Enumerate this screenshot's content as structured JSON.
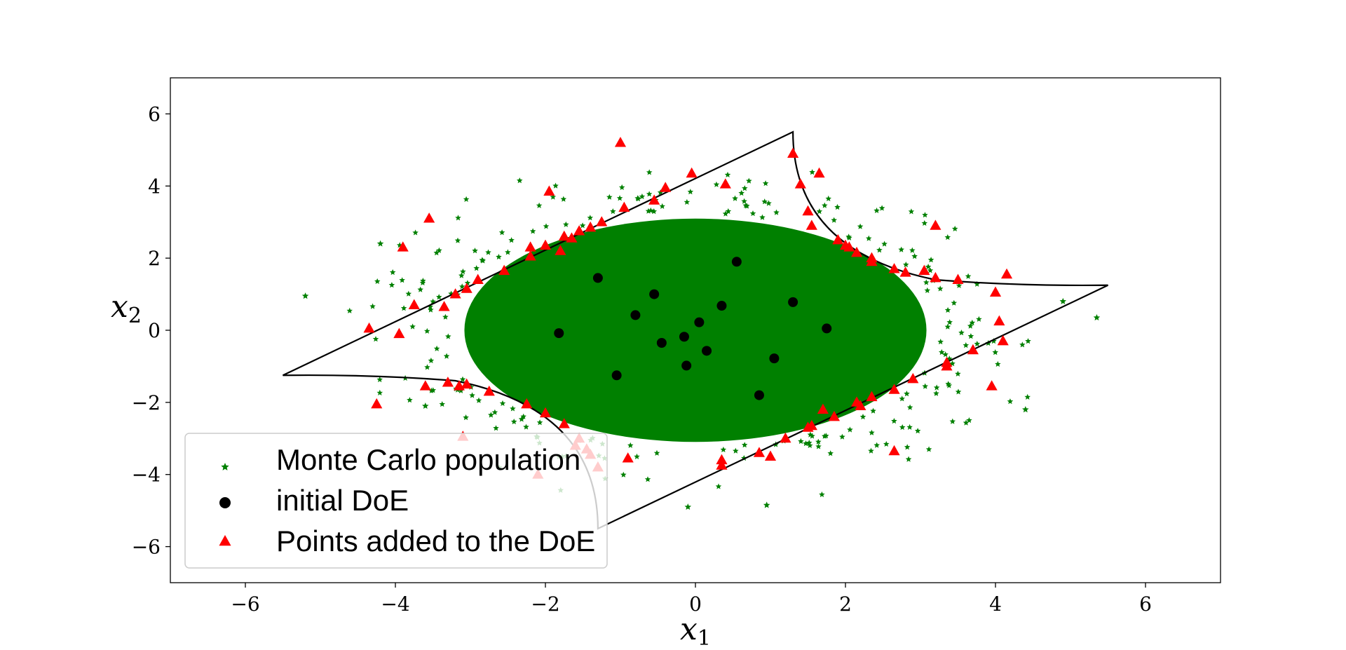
{
  "chart_data": {
    "type": "scatter",
    "title": "",
    "xlabel": "x",
    "xlabel_sub": "1",
    "ylabel": "x",
    "ylabel_sub": "2",
    "xlim": [
      -7,
      7
    ],
    "ylim": [
      -7,
      7
    ],
    "xticks": [
      -6,
      -4,
      -2,
      0,
      2,
      4,
      6
    ],
    "yticks": [
      -6,
      -4,
      -2,
      0,
      2,
      4,
      6
    ],
    "x_tick_labels": [
      "−6",
      "−4",
      "−2",
      "0",
      "2",
      "4",
      "6"
    ],
    "y_tick_labels": [
      "−6",
      "−4",
      "−2",
      "0",
      "2",
      "4",
      "6"
    ],
    "grid": false,
    "legend_position": "lower-left",
    "population": {
      "std_x": 1.0,
      "std_y": 1.0,
      "count_hint": "dense ellipse"
    },
    "series": [
      {
        "name": "Monte Carlo population",
        "marker": "star",
        "color": "#008000",
        "ellipse_center": [
          0,
          0
        ],
        "ellipse_radii": [
          3.5,
          3.6
        ],
        "outliers": [
          [
            -5.2,
            0.95
          ],
          [
            5.35,
            0.35
          ],
          [
            4.4,
            -2.2
          ],
          [
            -0.1,
            -4.9
          ],
          [
            0.95,
            -4.85
          ],
          [
            -3.6,
            -2.1
          ],
          [
            -4.2,
            2.4
          ],
          [
            4.9,
            0.8
          ]
        ]
      },
      {
        "name": "initial DoE",
        "marker": "circle",
        "color": "#000000",
        "points": [
          [
            -1.3,
            1.45
          ],
          [
            0.55,
            1.9
          ],
          [
            -0.55,
            1.0
          ],
          [
            -0.8,
            0.42
          ],
          [
            0.35,
            0.68
          ],
          [
            1.3,
            0.78
          ],
          [
            -1.82,
            -0.08
          ],
          [
            0.05,
            0.22
          ],
          [
            1.75,
            0.05
          ],
          [
            -0.15,
            -0.18
          ],
          [
            -0.45,
            -0.35
          ],
          [
            0.15,
            -0.57
          ],
          [
            -1.05,
            -1.25
          ],
          [
            -0.12,
            -0.98
          ],
          [
            1.05,
            -0.78
          ],
          [
            0.85,
            -1.8
          ]
        ]
      },
      {
        "name": "Points added to the DoE",
        "marker": "triangle",
        "color": "#ff0000",
        "points": [
          [
            -1.0,
            5.2
          ],
          [
            1.3,
            4.9
          ],
          [
            1.65,
            4.35
          ],
          [
            -0.05,
            4.35
          ],
          [
            1.4,
            4.05
          ],
          [
            0.4,
            4.05
          ],
          [
            -0.4,
            3.95
          ],
          [
            -1.95,
            3.85
          ],
          [
            -0.55,
            3.6
          ],
          [
            -0.95,
            3.4
          ],
          [
            1.5,
            3.3
          ],
          [
            -3.55,
            3.1
          ],
          [
            1.55,
            2.9
          ],
          [
            3.2,
            2.9
          ],
          [
            -1.25,
            3.0
          ],
          [
            -1.4,
            2.85
          ],
          [
            -1.55,
            2.75
          ],
          [
            -1.75,
            2.6
          ],
          [
            -1.65,
            2.55
          ],
          [
            -2.2,
            2.3
          ],
          [
            -2.0,
            2.35
          ],
          [
            -1.8,
            2.2
          ],
          [
            -3.9,
            2.3
          ],
          [
            1.9,
            2.5
          ],
          [
            2.0,
            2.35
          ],
          [
            2.05,
            2.3
          ],
          [
            2.15,
            2.15
          ],
          [
            2.35,
            2.0
          ],
          [
            2.35,
            1.9
          ],
          [
            -2.2,
            2.05
          ],
          [
            -2.55,
            1.65
          ],
          [
            2.65,
            1.7
          ],
          [
            2.8,
            1.6
          ],
          [
            3.05,
            1.65
          ],
          [
            3.2,
            1.45
          ],
          [
            3.5,
            1.4
          ],
          [
            4.15,
            1.55
          ],
          [
            -2.9,
            1.4
          ],
          [
            -3.05,
            1.15
          ],
          [
            -3.2,
            1.0
          ],
          [
            4.0,
            1.05
          ],
          [
            -3.75,
            0.7
          ],
          [
            -3.35,
            0.65
          ],
          [
            4.05,
            0.25
          ],
          [
            -4.35,
            0.05
          ],
          [
            -3.95,
            -0.1
          ],
          [
            4.1,
            -0.3
          ],
          [
            3.7,
            -0.55
          ],
          [
            3.35,
            -0.9
          ],
          [
            3.35,
            -1.0
          ],
          [
            2.9,
            -1.35
          ],
          [
            -3.3,
            -1.45
          ],
          [
            -3.05,
            -1.5
          ],
          [
            -3.15,
            -1.55
          ],
          [
            -3.6,
            -1.55
          ],
          [
            3.95,
            -1.55
          ],
          [
            2.65,
            -1.65
          ],
          [
            -2.75,
            -1.7
          ],
          [
            2.35,
            -1.85
          ],
          [
            2.15,
            -2.0
          ],
          [
            2.2,
            -2.1
          ],
          [
            -2.25,
            -2.05
          ],
          [
            1.7,
            -2.2
          ],
          [
            1.85,
            -2.4
          ],
          [
            -4.25,
            -2.05
          ],
          [
            -2.0,
            -2.3
          ],
          [
            1.55,
            -2.65
          ],
          [
            1.5,
            -2.7
          ],
          [
            -1.75,
            -2.6
          ],
          [
            -3.1,
            -2.95
          ],
          [
            1.2,
            -3.0
          ],
          [
            -1.55,
            -3.0
          ],
          [
            -1.6,
            -3.2
          ],
          [
            -1.45,
            -3.3
          ],
          [
            -1.4,
            -3.45
          ],
          [
            2.65,
            -3.35
          ],
          [
            0.85,
            -3.4
          ],
          [
            1.0,
            -3.5
          ],
          [
            -0.9,
            -3.55
          ],
          [
            0.35,
            -3.6
          ],
          [
            0.35,
            -3.75
          ],
          [
            -1.3,
            -3.8
          ],
          [
            -2.1,
            -4.0
          ]
        ]
      }
    ],
    "boundary_curve": {
      "color": "#000000",
      "vertices": [
        [
          -5.5,
          -1.25
        ],
        [
          1.3,
          5.5
        ],
        [
          5.5,
          1.25
        ],
        [
          -1.3,
          -5.5
        ]
      ]
    }
  },
  "legend": {
    "items": [
      {
        "label": "Monte Carlo population"
      },
      {
        "label": "initial DoE"
      },
      {
        "label": "Points added to the DoE"
      }
    ]
  }
}
